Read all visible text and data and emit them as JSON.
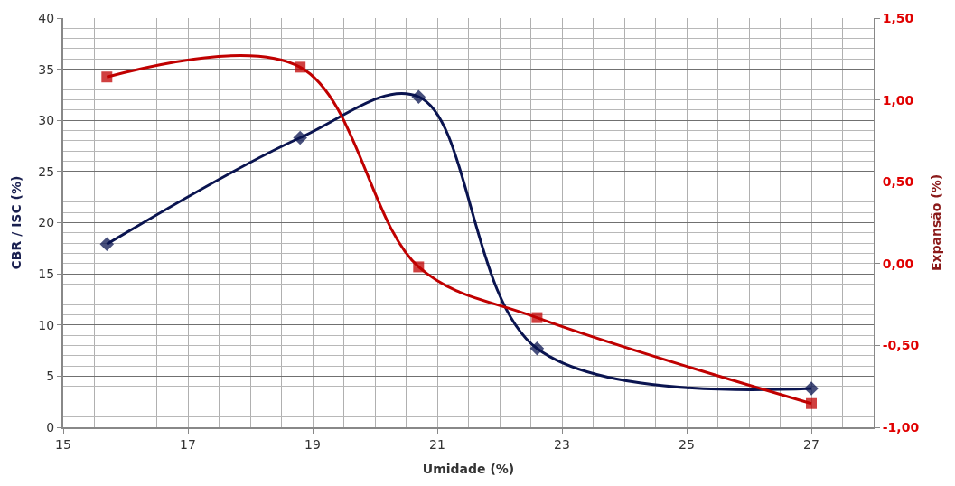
{
  "chart_data": {
    "type": "line",
    "xlabel": "Umidade (%)",
    "ylabel": "CBR / ISC (%)",
    "y2label": "Expansão (%)",
    "x": [
      15.7,
      18.8,
      20.7,
      22.6,
      27.0
    ],
    "series": [
      {
        "color": "#0a1450",
        "values": [
          17.9,
          28.3,
          32.3,
          7.7,
          3.8
        ],
        "marker": "diamond"
      },
      {
        "color": "#c00000",
        "values": [
          1.14,
          1.2,
          -0.02,
          -0.33,
          -0.855
        ],
        "marker": "square",
        "axis": "y2"
      }
    ],
    "xlim": [
      15,
      28
    ],
    "xticks": [
      15,
      17,
      19,
      21,
      23,
      25,
      27
    ],
    "ylim": [
      0,
      40
    ],
    "yticks": [
      0,
      5,
      10,
      15,
      20,
      25,
      30,
      35,
      40
    ],
    "y2lim": [
      -1.0,
      1.5
    ],
    "y2ticks": [
      {
        "value": 1.5,
        "label": "1,50"
      },
      {
        "value": 1.0,
        "label": "1,00"
      },
      {
        "value": 0.5,
        "label": "0,50"
      },
      {
        "value": 0.0,
        "label": "0,00"
      },
      {
        "value": -0.5,
        "label": "-0,50"
      },
      {
        "value": -1.0,
        "label": "-1,00"
      }
    ],
    "grid": true,
    "line_style": "solid"
  }
}
